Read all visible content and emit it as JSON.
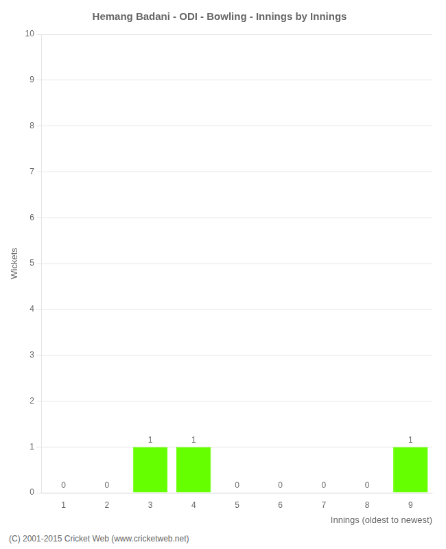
{
  "chart_data": {
    "type": "bar",
    "title": "Hemang Badani - ODI - Bowling - Innings by Innings",
    "xlabel": "Innings (oldest to newest)",
    "ylabel": "Wickets",
    "categories": [
      "1",
      "2",
      "3",
      "4",
      "5",
      "6",
      "7",
      "8",
      "9"
    ],
    "values": [
      0,
      0,
      1,
      1,
      0,
      0,
      0,
      0,
      1
    ],
    "color": "#66ff00",
    "ylim": [
      0,
      10
    ],
    "yticks": [
      0,
      1,
      2,
      3,
      4,
      5,
      6,
      7,
      8,
      9,
      10
    ],
    "grid": "y",
    "data_labels": true,
    "footer": "(C) 2001-2015 Cricket Web (www.cricketweb.net)"
  }
}
